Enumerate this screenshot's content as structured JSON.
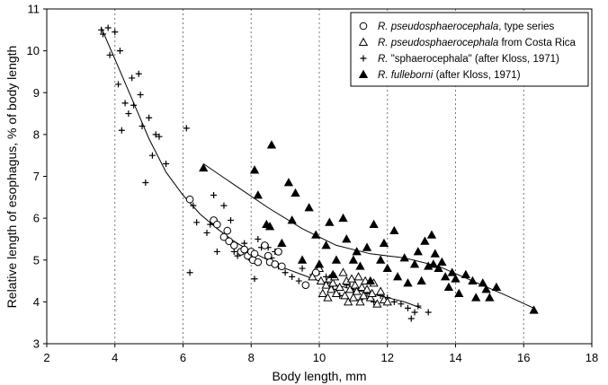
{
  "chart_data": {
    "type": "scatter",
    "xlabel": "Body length, mm",
    "ylabel": "Relative length of esophagus, % of body length",
    "xlim": [
      2,
      18
    ],
    "ylim": [
      3,
      11
    ],
    "xticks": [
      "2",
      "4",
      "6",
      "8",
      "10",
      "12",
      "14",
      "16",
      "18"
    ],
    "yticks": [
      "3",
      "4",
      "5",
      "6",
      "7",
      "8",
      "9",
      "10",
      "11"
    ],
    "grid": "vertical dashed",
    "legend_position": "top-right",
    "series": [
      {
        "name_italic": "R. pseudosphaerocephala",
        "name_rest": ", type series",
        "marker": "circle-open",
        "points": [
          [
            6.2,
            6.45
          ],
          [
            6.9,
            5.95
          ],
          [
            7.0,
            5.85
          ],
          [
            7.2,
            5.55
          ],
          [
            7.3,
            5.7
          ],
          [
            7.35,
            5.45
          ],
          [
            7.5,
            5.35
          ],
          [
            7.7,
            5.2
          ],
          [
            7.8,
            5.25
          ],
          [
            7.9,
            5.1
          ],
          [
            8.0,
            5.2
          ],
          [
            8.05,
            5.0
          ],
          [
            8.1,
            5.15
          ],
          [
            8.2,
            4.95
          ],
          [
            8.4,
            5.35
          ],
          [
            8.5,
            5.1
          ],
          [
            8.55,
            4.95
          ],
          [
            8.7,
            4.9
          ],
          [
            8.8,
            5.2
          ],
          [
            8.9,
            4.85
          ],
          [
            9.6,
            4.4
          ],
          [
            9.9,
            4.7
          ]
        ]
      },
      {
        "name_italic": "R. pseudosphaerocephala",
        "name_rest": " from Costa Rica",
        "marker": "triangle-open",
        "points": [
          [
            9.8,
            4.6
          ],
          [
            9.9,
            4.75
          ],
          [
            10.0,
            4.8
          ],
          [
            10.05,
            4.5
          ],
          [
            10.1,
            4.2
          ],
          [
            10.2,
            4.4
          ],
          [
            10.25,
            4.1
          ],
          [
            10.3,
            4.55
          ],
          [
            10.35,
            4.3
          ],
          [
            10.4,
            4.45
          ],
          [
            10.45,
            4.6
          ],
          [
            10.5,
            4.2
          ],
          [
            10.6,
            4.35
          ],
          [
            10.7,
            4.7
          ],
          [
            10.75,
            4.15
          ],
          [
            10.8,
            4.5
          ],
          [
            10.85,
            4.0
          ],
          [
            10.9,
            4.3
          ],
          [
            10.95,
            4.55
          ],
          [
            11.0,
            4.1
          ],
          [
            11.05,
            4.4
          ],
          [
            11.1,
            4.25
          ],
          [
            11.15,
            4.6
          ],
          [
            11.2,
            4.0
          ],
          [
            11.25,
            4.35
          ],
          [
            11.3,
            4.15
          ],
          [
            11.35,
            4.5
          ],
          [
            11.4,
            4.3
          ],
          [
            11.5,
            4.1
          ],
          [
            11.55,
            4.2
          ],
          [
            11.6,
            4.45
          ],
          [
            11.7,
            3.95
          ],
          [
            11.8,
            4.25
          ],
          [
            11.9,
            4.05
          ],
          [
            12.0,
            4.0
          ]
        ]
      },
      {
        "name_italic": "R.",
        "name_rest": " \"sphaerocephala\" (after Kloss, 1971)",
        "marker": "plus",
        "points": [
          [
            3.6,
            10.5
          ],
          [
            3.65,
            10.4
          ],
          [
            3.8,
            10.55
          ],
          [
            3.85,
            9.9
          ],
          [
            4.0,
            10.45
          ],
          [
            4.1,
            9.2
          ],
          [
            4.15,
            10.0
          ],
          [
            4.2,
            8.1
          ],
          [
            4.3,
            8.75
          ],
          [
            4.4,
            8.5
          ],
          [
            4.5,
            9.35
          ],
          [
            4.55,
            8.7
          ],
          [
            4.7,
            9.45
          ],
          [
            4.75,
            8.95
          ],
          [
            4.8,
            8.2
          ],
          [
            4.9,
            6.85
          ],
          [
            5.0,
            8.4
          ],
          [
            5.1,
            7.5
          ],
          [
            5.2,
            8.0
          ],
          [
            5.3,
            7.95
          ],
          [
            5.5,
            7.3
          ],
          [
            6.1,
            8.15
          ],
          [
            6.2,
            4.7
          ],
          [
            6.3,
            6.3
          ],
          [
            6.4,
            5.9
          ],
          [
            6.7,
            5.65
          ],
          [
            6.8,
            5.85
          ],
          [
            6.9,
            6.55
          ],
          [
            7.0,
            5.2
          ],
          [
            7.2,
            6.3
          ],
          [
            7.4,
            5.95
          ],
          [
            7.5,
            5.2
          ],
          [
            7.6,
            5.1
          ],
          [
            7.8,
            5.4
          ],
          [
            8.0,
            5.0
          ],
          [
            8.1,
            4.55
          ],
          [
            8.2,
            5.5
          ],
          [
            8.3,
            5.3
          ],
          [
            8.5,
            5.3
          ],
          [
            8.6,
            5.05
          ],
          [
            8.7,
            5.2
          ],
          [
            8.8,
            4.85
          ],
          [
            9.0,
            4.7
          ],
          [
            9.2,
            4.6
          ],
          [
            9.4,
            4.5
          ],
          [
            9.5,
            4.8
          ],
          [
            9.8,
            4.65
          ],
          [
            10.2,
            4.6
          ],
          [
            10.4,
            4.3
          ],
          [
            10.6,
            4.15
          ],
          [
            10.8,
            4.4
          ],
          [
            11.0,
            4.25
          ],
          [
            11.2,
            4.05
          ],
          [
            11.4,
            4.2
          ],
          [
            11.6,
            4.0
          ],
          [
            11.8,
            4.15
          ],
          [
            12.0,
            4.1
          ],
          [
            12.2,
            4.0
          ],
          [
            12.4,
            3.95
          ],
          [
            12.6,
            3.85
          ],
          [
            12.7,
            3.6
          ],
          [
            12.8,
            3.75
          ],
          [
            12.9,
            3.9
          ],
          [
            13.2,
            3.75
          ]
        ]
      },
      {
        "name_italic": "R. fulleborni",
        "name_rest": " (after Kloss, 1971)",
        "marker": "triangle-filled",
        "points": [
          [
            6.6,
            7.2
          ],
          [
            8.1,
            7.15
          ],
          [
            8.2,
            6.55
          ],
          [
            8.45,
            5.85
          ],
          [
            8.55,
            5.8
          ],
          [
            8.6,
            7.75
          ],
          [
            8.9,
            5.4
          ],
          [
            9.1,
            6.85
          ],
          [
            9.2,
            5.95
          ],
          [
            9.3,
            6.6
          ],
          [
            9.5,
            5.0
          ],
          [
            9.7,
            6.25
          ],
          [
            9.9,
            5.6
          ],
          [
            10.0,
            4.9
          ],
          [
            10.2,
            5.35
          ],
          [
            10.3,
            5.9
          ],
          [
            10.4,
            4.65
          ],
          [
            10.5,
            5.0
          ],
          [
            10.7,
            6.0
          ],
          [
            10.8,
            5.5
          ],
          [
            11.0,
            5.0
          ],
          [
            11.1,
            5.2
          ],
          [
            11.2,
            4.85
          ],
          [
            11.4,
            5.3
          ],
          [
            11.5,
            4.5
          ],
          [
            11.6,
            5.85
          ],
          [
            11.8,
            5.0
          ],
          [
            11.9,
            5.4
          ],
          [
            12.0,
            4.8
          ],
          [
            12.2,
            5.7
          ],
          [
            12.3,
            4.6
          ],
          [
            12.5,
            5.05
          ],
          [
            12.6,
            4.45
          ],
          [
            12.8,
            4.9
          ],
          [
            12.9,
            5.2
          ],
          [
            13.0,
            4.5
          ],
          [
            13.1,
            5.45
          ],
          [
            13.2,
            4.85
          ],
          [
            13.3,
            5.6
          ],
          [
            13.35,
            4.9
          ],
          [
            13.4,
            5.15
          ],
          [
            13.5,
            4.8
          ],
          [
            13.6,
            4.95
          ],
          [
            13.7,
            4.6
          ],
          [
            13.8,
            4.35
          ],
          [
            13.9,
            4.7
          ],
          [
            14.0,
            4.55
          ],
          [
            14.1,
            4.2
          ],
          [
            14.3,
            4.65
          ],
          [
            14.5,
            4.5
          ],
          [
            14.6,
            4.1
          ],
          [
            14.8,
            4.45
          ],
          [
            14.9,
            4.3
          ],
          [
            15.0,
            4.1
          ],
          [
            15.2,
            4.35
          ],
          [
            16.3,
            3.8
          ]
        ]
      }
    ],
    "trend_lines": [
      {
        "points": [
          [
            3.6,
            10.55
          ],
          [
            4.0,
            9.8
          ],
          [
            4.5,
            8.85
          ],
          [
            5.0,
            7.9
          ],
          [
            5.5,
            7.1
          ],
          [
            6.0,
            6.55
          ],
          [
            6.5,
            6.1
          ],
          [
            7.0,
            5.75
          ],
          [
            7.5,
            5.45
          ],
          [
            8.0,
            5.2
          ],
          [
            8.5,
            5.0
          ],
          [
            9.0,
            4.8
          ],
          [
            9.5,
            4.65
          ],
          [
            10.0,
            4.5
          ],
          [
            10.5,
            4.4
          ],
          [
            11.0,
            4.3
          ],
          [
            11.5,
            4.2
          ],
          [
            12.0,
            4.1
          ],
          [
            12.5,
            4.0
          ],
          [
            13.0,
            3.85
          ]
        ]
      },
      {
        "points": [
          [
            6.6,
            7.3
          ],
          [
            7.5,
            6.8
          ],
          [
            8.5,
            6.25
          ],
          [
            9.5,
            5.75
          ],
          [
            10.5,
            5.35
          ],
          [
            11.5,
            5.15
          ],
          [
            12.5,
            5.05
          ],
          [
            13.5,
            4.85
          ],
          [
            14.5,
            4.5
          ],
          [
            15.5,
            4.15
          ],
          [
            16.3,
            3.85
          ]
        ]
      }
    ]
  }
}
